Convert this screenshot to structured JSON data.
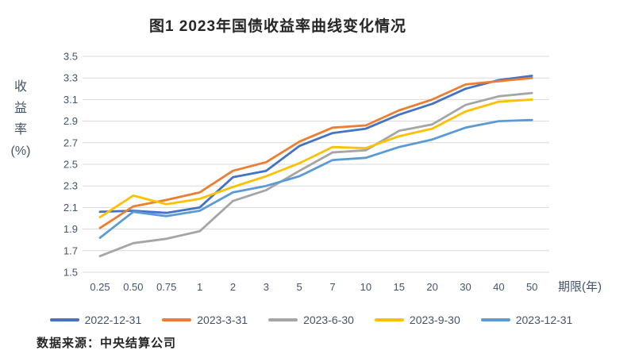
{
  "title": "图1 2023年国债收益率曲线变化情况",
  "source_note": "数据来源：中央结算公司",
  "y_axis_label_lines": [
    "收",
    "益",
    "率",
    "(%)"
  ],
  "chart_data": {
    "type": "line",
    "title": "图1 2023年国债收益率曲线变化情况",
    "xlabel": "期限(年)",
    "ylabel": "收益率(%)",
    "categories": [
      "0.25",
      "0.50",
      "0.75",
      "1",
      "2",
      "3",
      "5",
      "7",
      "10",
      "15",
      "20",
      "30",
      "40",
      "50"
    ],
    "ylim": [
      1.5,
      3.5
    ],
    "ytick_step": 0.2,
    "grid": true,
    "legend_position": "bottom",
    "gridline_color": "#D9D9D9",
    "series": [
      {
        "name": "2022-12-31",
        "color": "#4472C4",
        "values": [
          2.06,
          2.07,
          2.05,
          2.1,
          2.38,
          2.44,
          2.67,
          2.79,
          2.83,
          2.96,
          3.06,
          3.2,
          3.28,
          3.32
        ]
      },
      {
        "name": "2023-3-31",
        "color": "#ED7D31",
        "values": [
          1.91,
          2.11,
          2.17,
          2.24,
          2.44,
          2.52,
          2.71,
          2.84,
          2.86,
          3.0,
          3.1,
          3.24,
          3.27,
          3.3
        ]
      },
      {
        "name": "2023-6-30",
        "color": "#A5A5A5",
        "values": [
          1.65,
          1.77,
          1.81,
          1.88,
          2.16,
          2.26,
          2.44,
          2.61,
          2.63,
          2.81,
          2.87,
          3.05,
          3.13,
          3.16
        ]
      },
      {
        "name": "2023-9-30",
        "color": "#FFC000",
        "values": [
          2.01,
          2.21,
          2.13,
          2.18,
          2.29,
          2.39,
          2.51,
          2.66,
          2.65,
          2.76,
          2.83,
          2.99,
          3.08,
          3.1
        ]
      },
      {
        "name": "2023-12-31",
        "color": "#5B9BD5",
        "values": [
          1.82,
          2.06,
          2.02,
          2.07,
          2.24,
          2.3,
          2.39,
          2.54,
          2.56,
          2.66,
          2.73,
          2.84,
          2.9,
          2.91
        ]
      }
    ]
  }
}
